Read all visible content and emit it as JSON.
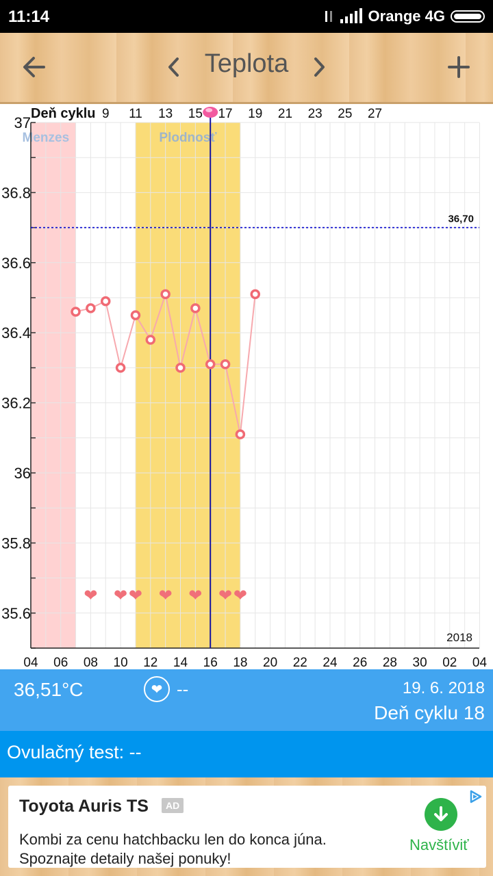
{
  "status_bar": {
    "time": "11:14",
    "carrier": "Orange 4G"
  },
  "toolbar": {
    "title": "Teplota",
    "back_icon": "arrow-left-icon",
    "prev_icon": "chevron-left-icon",
    "next_icon": "chevron-right-icon",
    "add_icon": "plus-icon"
  },
  "chart_data": {
    "type": "line",
    "top_axis_label": "Deň cyklu",
    "cycle_ticks": [
      "9",
      "11",
      "13",
      "15",
      "17",
      "19",
      "21",
      "23",
      "25",
      "27"
    ],
    "date_ticks": [
      "04",
      "06",
      "08",
      "10",
      "12",
      "14",
      "16",
      "18",
      "20",
      "22",
      "24",
      "26",
      "28",
      "30",
      "02",
      "04"
    ],
    "y_ticks": [
      "37",
      "36.8",
      "36.6",
      "36.4",
      "36.2",
      "36",
      "35.8",
      "35.6"
    ],
    "ylim": [
      35.5,
      37.0
    ],
    "year_label": "2018",
    "threshold": {
      "value": 36.7,
      "label": "36,70",
      "color": "#0000cc"
    },
    "zones": [
      {
        "label": "Menzes",
        "from_day": 3,
        "to_day": 7,
        "color": "#ffd2d2",
        "label_color": "#a7c0e0"
      },
      {
        "label": "Plodnosť",
        "from_day": 11,
        "to_day": 18,
        "color": "#fadc78",
        "label_color": "#9fb5c9"
      }
    ],
    "selected_day": 16,
    "ovulation_day": 16,
    "series": [
      {
        "color": "#f06a74",
        "x": [
          7,
          8,
          9,
          10,
          11,
          12,
          13,
          14,
          15,
          16,
          17,
          18,
          19
        ],
        "values": [
          36.46,
          36.47,
          36.49,
          36.3,
          36.45,
          36.38,
          36.51,
          36.3,
          36.47,
          36.31,
          36.31,
          36.11,
          36.51
        ]
      }
    ],
    "heart_days": [
      8,
      10,
      11,
      13,
      15,
      17,
      18
    ],
    "heart_value": 35.65,
    "heart_color": "#f07079"
  },
  "info": {
    "temperature": "36,51°C",
    "love_value": "--",
    "date": "19. 6. 2018",
    "cycle_day": "Deň cyklu 18",
    "love_icon": "heart-icon"
  },
  "test": {
    "label": "Ovulačný test: --"
  },
  "ad": {
    "title": "Toyota Auris TS",
    "badge": "AD",
    "line1": "Kombi za cenu hatchbacku len do konca júna.",
    "line2": "Spoznajte detaily našej ponuky!",
    "cta": "Navštíviť"
  }
}
